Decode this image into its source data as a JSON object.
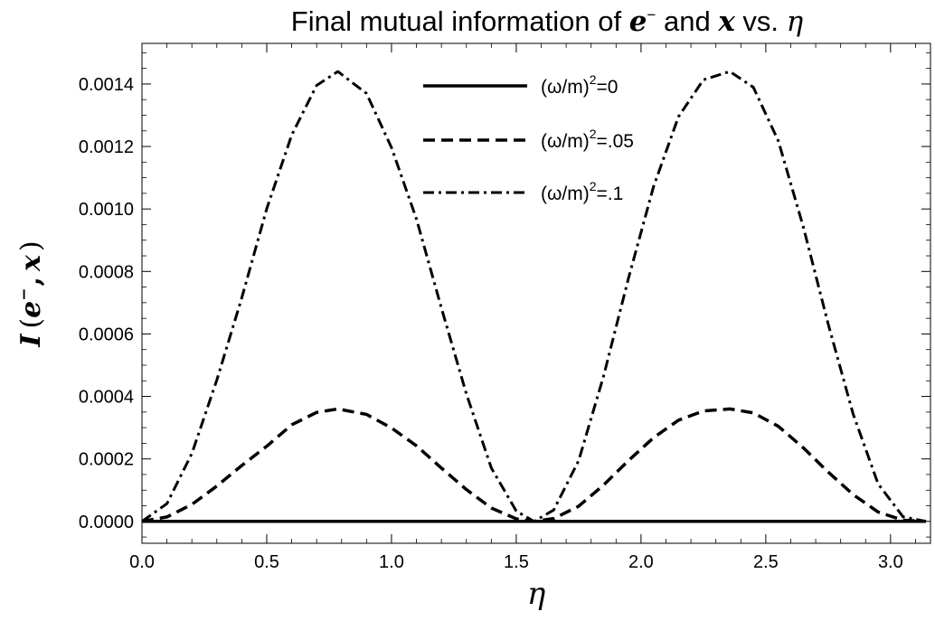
{
  "chart_data": {
    "type": "line",
    "title": {
      "prefix": "Final mutual information of ",
      "e_sym": "e",
      "e_sup": "−",
      "mid": " and ",
      "x_sym": "x",
      "suffix": "  vs.  ",
      "eta_sym": "η"
    },
    "xlabel": "η",
    "ylabel": {
      "func": "I",
      "open": "(",
      "e_sym": "e",
      "e_sup": "−",
      "comma": ",",
      "x_sym": "x",
      "close": ")"
    },
    "xlim": [
      0,
      3.16
    ],
    "ylim": [
      -7e-05,
      0.00153
    ],
    "x_ticks": [
      {
        "value": 0.0,
        "label": "0.0"
      },
      {
        "value": 0.5,
        "label": "0.5"
      },
      {
        "value": 1.0,
        "label": "1.0"
      },
      {
        "value": 1.5,
        "label": "1.5"
      },
      {
        "value": 2.0,
        "label": "2.0"
      },
      {
        "value": 2.5,
        "label": "2.5"
      },
      {
        "value": 3.0,
        "label": "3.0"
      }
    ],
    "y_ticks": [
      {
        "value": 0.0,
        "label": "0.0000"
      },
      {
        "value": 0.0002,
        "label": "0.0002"
      },
      {
        "value": 0.0004,
        "label": "0.0004"
      },
      {
        "value": 0.0006,
        "label": "0.0006"
      },
      {
        "value": 0.0008,
        "label": "0.0008"
      },
      {
        "value": 0.001,
        "label": "0.0010"
      },
      {
        "value": 0.0012,
        "label": "0.0012"
      },
      {
        "value": 0.0014,
        "label": "0.0014"
      }
    ],
    "grid": false,
    "legend_position": "top-center",
    "line_color": "#000000",
    "series": [
      {
        "label": {
          "base": "(ω/m)",
          "sup": "2",
          "val": "=0"
        },
        "style": "solid",
        "x": [
          0.0,
          0.1,
          0.2,
          0.3,
          0.4,
          0.5,
          0.6,
          0.7,
          0.785,
          0.9,
          1.0,
          1.1,
          1.2,
          1.3,
          1.4,
          1.5,
          1.571,
          1.65,
          1.75,
          1.85,
          1.95,
          2.05,
          2.15,
          2.25,
          2.356,
          2.45,
          2.55,
          2.65,
          2.75,
          2.85,
          2.95,
          3.05,
          3.142
        ],
        "values": [
          0,
          0,
          0,
          0,
          0,
          0,
          0,
          0,
          0,
          0,
          0,
          0,
          0,
          0,
          0,
          0,
          0,
          0,
          0,
          0,
          0,
          0,
          0,
          0,
          0,
          0,
          0,
          0,
          0,
          0,
          0,
          0,
          0
        ]
      },
      {
        "label": {
          "base": "(ω/m)",
          "sup": "2",
          "val": "=.05"
        },
        "style": "dashed",
        "x": [
          0.0,
          0.1,
          0.2,
          0.3,
          0.4,
          0.5,
          0.6,
          0.7,
          0.785,
          0.9,
          1.0,
          1.1,
          1.2,
          1.3,
          1.4,
          1.5,
          1.571,
          1.65,
          1.75,
          1.85,
          1.95,
          2.05,
          2.15,
          2.25,
          2.356,
          2.45,
          2.55,
          2.65,
          2.75,
          2.85,
          2.95,
          3.05,
          3.142
        ],
        "values": [
          0.0,
          1.42e-05,
          5.43e-05,
          0.0001131,
          0.0001789,
          0.0002406,
          0.0003091,
          0.0003489,
          0.00036,
          0.0003424,
          0.0002991,
          0.000242,
          0.0001708,
          0.0001021,
          4.28e-05,
          8.3e-06,
          0.0,
          9.1e-06,
          4.86e-05,
          0.0001163,
          0.0001948,
          0.0002678,
          0.0003238,
          0.0003534,
          0.00036,
          0.0003474,
          0.0003046,
          0.0002359,
          0.000158,
          8.59e-05,
          3.01e-05,
          3.7e-06,
          0.0
        ]
      },
      {
        "label": {
          "base": "(ω/m)",
          "sup": "2",
          "val": "=.1"
        },
        "style": "dashdot",
        "x": [
          0.0,
          0.1,
          0.2,
          0.3,
          0.4,
          0.5,
          0.6,
          0.7,
          0.785,
          0.9,
          1.0,
          1.1,
          1.2,
          1.3,
          1.4,
          1.5,
          1.571,
          1.65,
          1.75,
          1.85,
          1.95,
          2.05,
          2.15,
          2.25,
          2.356,
          2.45,
          2.55,
          2.65,
          2.75,
          2.85,
          2.95,
          3.05,
          3.142
        ],
        "values": [
          0.0,
          5.67e-05,
          0.0002174,
          0.0004524,
          0.0007156,
          0.0010006,
          0.0012364,
          0.0013956,
          0.00144,
          0.0013696,
          0.0011964,
          0.000968,
          0.0006832,
          0.0004084,
          0.0001712,
          3.32e-05,
          0.0,
          3.64e-05,
          0.0001944,
          0.0004652,
          0.0007792,
          0.0010712,
          0.0012952,
          0.0014136,
          0.00144,
          0.0013896,
          0.0012184,
          0.0009436,
          0.000632,
          0.0003436,
          0.0001204,
          1.48e-05,
          0.0
        ]
      }
    ]
  }
}
